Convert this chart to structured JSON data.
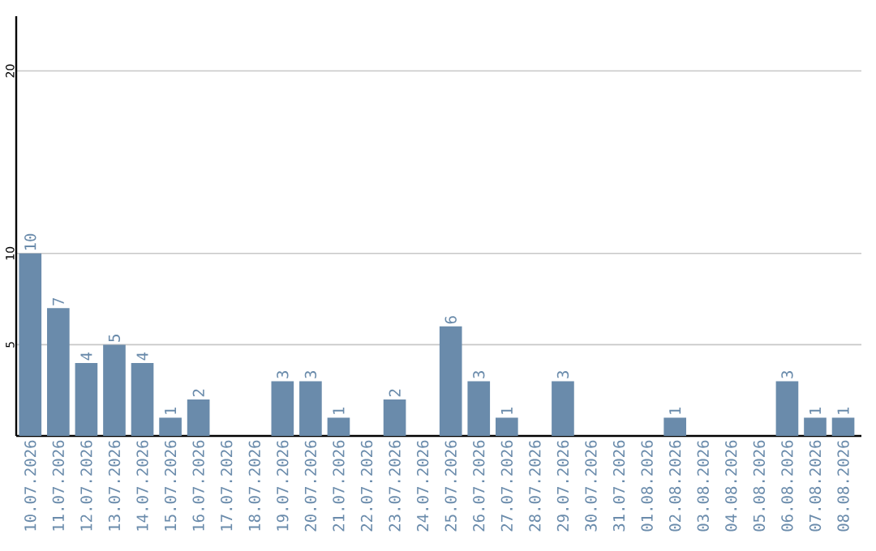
{
  "chart_data": {
    "type": "bar",
    "categories": [
      "10.07.2026",
      "11.07.2026",
      "12.07.2026",
      "13.07.2026",
      "14.07.2026",
      "15.07.2026",
      "16.07.2026",
      "17.07.2026",
      "18.07.2026",
      "19.07.2026",
      "20.07.2026",
      "21.07.2026",
      "22.07.2026",
      "23.07.2026",
      "24.07.2026",
      "25.07.2026",
      "26.07.2026",
      "27.07.2026",
      "28.07.2026",
      "29.07.2026",
      "30.07.2026",
      "31.07.2026",
      "01.08.2026",
      "02.08.2026",
      "03.08.2026",
      "04.08.2026",
      "05.08.2026",
      "06.08.2026",
      "07.08.2026",
      "08.08.2026"
    ],
    "values": [
      10,
      7,
      4,
      5,
      4,
      1,
      2,
      0,
      0,
      3,
      3,
      1,
      0,
      2,
      0,
      6,
      3,
      1,
      0,
      3,
      0,
      0,
      0,
      1,
      0,
      0,
      0,
      3,
      1,
      1
    ],
    "value_labels": [
      "10",
      "7",
      "4",
      "5",
      "4",
      "1",
      "2",
      null,
      null,
      "3",
      "3",
      "1",
      null,
      "2",
      null,
      "6",
      "3",
      "1",
      null,
      "3",
      null,
      null,
      null,
      "1",
      null,
      null,
      null,
      "3",
      "1",
      "1"
    ],
    "color": "#6a8bab",
    "ylim": [
      0,
      23
    ],
    "yticks": [
      5,
      10,
      20
    ],
    "grid": "y"
  }
}
